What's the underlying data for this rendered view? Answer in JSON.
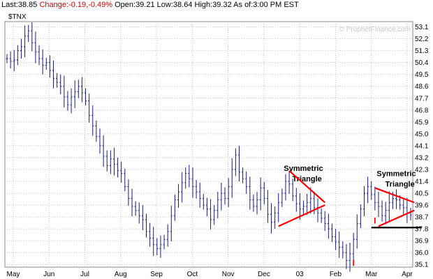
{
  "header": {
    "last_label": "Last:",
    "last_value": "38.85",
    "change_label": "Change:",
    "change_value": "-0.19,-0.49%",
    "open_label": "Open:",
    "open_value": "39.21",
    "low_label": "Low:",
    "low_value": "38.64",
    "high_label": "High:",
    "high_value": "39.32",
    "asof_label": "As of:",
    "asof_value": "3:00 PM EST"
  },
  "watermark": "© ProphetFinance.com",
  "colors": {
    "price_bars": "#1a1a8c",
    "grid": "#c8c8c8",
    "annotation_lines": "#ff0000",
    "support_line": "#000000",
    "header_negative": "#cc0000"
  },
  "chart_data": {
    "type": "ohlc-bar",
    "symbol": "$TNX",
    "x_tick_labels": [
      "May",
      "Jun",
      "Jul",
      "Aug",
      "Sep",
      "Oct",
      "Nov",
      "Dec",
      "03",
      "Feb",
      "Mar",
      "Apr"
    ],
    "y_tick_labels": [
      "53.1",
      "52.2",
      "51.3",
      "50.4",
      "49.5",
      "48.6",
      "47.7",
      "46.8",
      "45.9",
      "45.0",
      "44.1",
      "43.2",
      "42.3",
      "41.4",
      "40.5",
      "39.6",
      "38.7",
      "37.8",
      "36.9",
      "36.0",
      "35.1"
    ],
    "ylim": [
      34.9,
      53.5
    ],
    "grid": true,
    "approximate_closes": [
      50.7,
      50.5,
      50.6,
      51.3,
      51.6,
      52.4,
      52.8,
      51.9,
      51.2,
      50.7,
      50.2,
      50.4,
      49.8,
      49.2,
      48.9,
      48.6,
      47.8,
      47.2,
      47.8,
      48.2,
      48.6,
      48.1,
      47.5,
      46.4,
      45.6,
      44.8,
      44.1,
      43.3,
      42.6,
      43.1,
      42.7,
      42.2,
      42.0,
      41.0,
      40.1,
      39.5,
      39.2,
      38.8,
      38.5,
      37.6,
      37.1,
      36.6,
      36.3,
      36.6,
      37.0,
      37.6,
      38.8,
      40.0,
      40.6,
      41.3,
      42.0,
      41.6,
      41.0,
      40.6,
      40.1,
      39.6,
      39.3,
      38.5,
      39.2,
      40.0,
      40.5,
      40.1,
      41.0,
      42.3,
      43.4,
      42.1,
      41.6,
      41.0,
      40.0,
      39.5,
      40.0,
      40.9,
      40.1,
      38.9,
      38.3,
      39.0,
      39.8,
      40.5,
      41.4,
      41.2,
      40.3,
      39.7,
      39.3,
      39.5,
      39.8,
      40.1,
      39.4,
      39.0,
      38.6,
      38.2,
      37.8,
      37.2,
      36.8,
      36.4,
      36.0,
      35.4,
      35.9,
      37.0,
      38.2,
      39.3,
      40.5,
      41.0,
      40.4,
      39.8,
      39.5,
      38.8,
      39.2,
      39.8,
      40.1,
      40.0,
      39.6,
      39.4,
      39.0,
      38.85
    ],
    "annotations": [
      {
        "type": "text",
        "text": "Symmetric",
        "x_index": 83,
        "y": 42.2
      },
      {
        "type": "text",
        "text": "Triangle",
        "x_index": 84,
        "y": 41.4
      },
      {
        "type": "text",
        "text": "Symmetric",
        "x_index": 109,
        "y": 41.8
      },
      {
        "type": "text",
        "text": "Triangle",
        "x_index": 110,
        "y": 41.0
      },
      {
        "type": "text",
        "text": "I",
        "x_index": 103,
        "y": 38.2
      },
      {
        "type": "text",
        "text": "I",
        "x_index": 97,
        "y": 35.0
      },
      {
        "type": "line",
        "from": [
          79,
          42.2
        ],
        "to": [
          89,
          39.8
        ],
        "color": "red"
      },
      {
        "type": "line",
        "from": [
          76,
          38.0
        ],
        "to": [
          89,
          39.6
        ],
        "color": "red"
      },
      {
        "type": "line",
        "from": [
          103,
          40.9
        ],
        "to": [
          114,
          39.8
        ],
        "color": "red"
      },
      {
        "type": "line",
        "from": [
          104,
          38.0
        ],
        "to": [
          114,
          39.2
        ],
        "color": "red"
      },
      {
        "type": "line",
        "from": [
          102,
          37.9
        ],
        "to": [
          116,
          37.9
        ],
        "color": "black"
      }
    ]
  }
}
